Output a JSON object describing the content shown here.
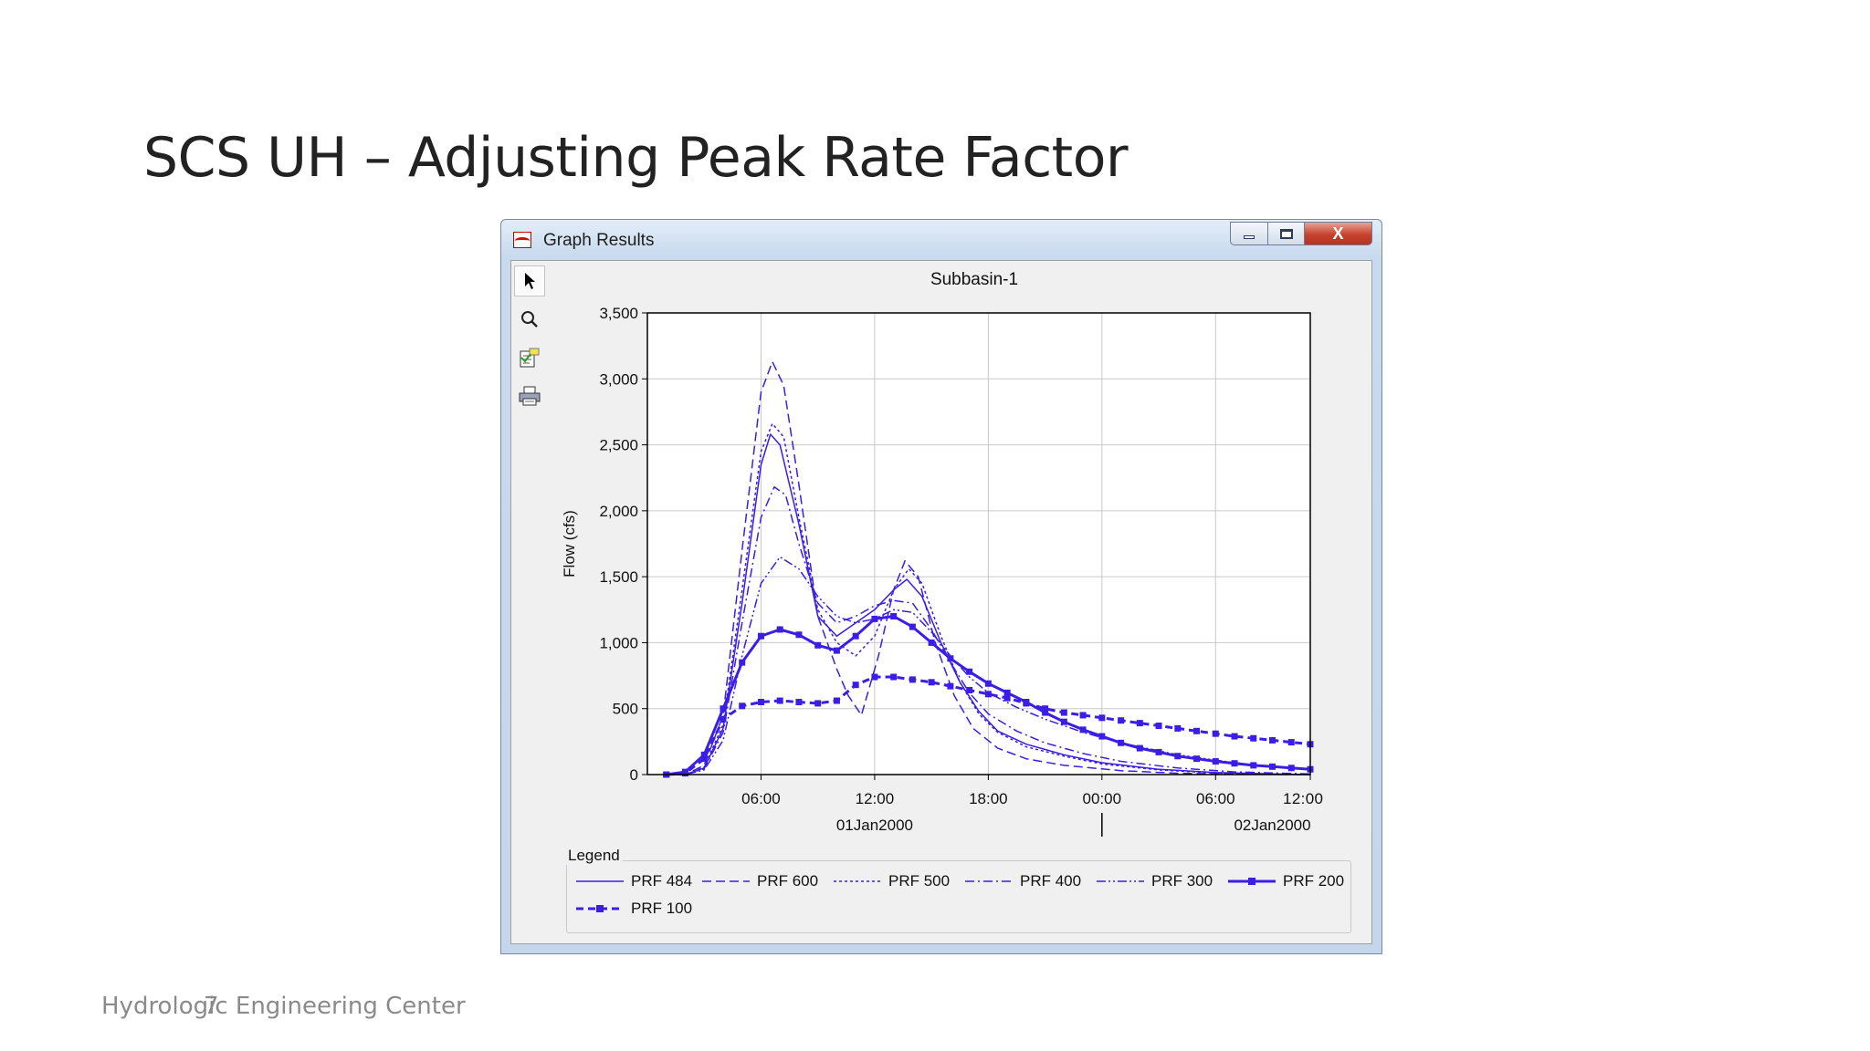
{
  "slide": {
    "title": "SCS UH – Adjusting Peak Rate Factor",
    "footer": "Hydrologic Engineering Center",
    "page_number": "7"
  },
  "window": {
    "title": "Graph Results",
    "close_glyph": "X",
    "toolbar": [
      {
        "icon": "pointer-icon",
        "name": "select-tool"
      },
      {
        "icon": "magnifier-icon",
        "name": "zoom-tool"
      },
      {
        "icon": "properties-icon",
        "name": "properties-tool"
      },
      {
        "icon": "printer-icon",
        "name": "print-tool"
      }
    ]
  },
  "colors": {
    "series": "#3a1ee6",
    "grid": "#c8c8c8",
    "plot_bg": "#ffffff"
  },
  "legend": {
    "title": "Legend"
  },
  "chart_data": {
    "type": "line",
    "title": "Subbasin-1",
    "xlabel": "",
    "ylabel": "Flow (cfs)",
    "ylim": [
      0,
      3500
    ],
    "xlim": [
      0,
      35
    ],
    "yticks": [
      0,
      500,
      1000,
      1500,
      2000,
      2500,
      3000,
      3500
    ],
    "ytick_labels": [
      "0",
      "500",
      "1,000",
      "1,500",
      "2,000",
      "2,500",
      "3,000",
      "3,500"
    ],
    "xticks": [
      6,
      12,
      18,
      24,
      30,
      36
    ],
    "xtick_labels": [
      "06:00",
      "12:00",
      "18:00",
      "00:00",
      "06:00",
      "12:00"
    ],
    "date_labels": [
      {
        "at": 12,
        "label": "01Jan2000"
      },
      {
        "at": 33,
        "label": "02Jan2000"
      }
    ],
    "date_divider_at": 24,
    "x_units": "hours after 00:00 01Jan2000",
    "series": [
      {
        "name": "PRF 484",
        "style": "solid",
        "points": [
          [
            1,
            0
          ],
          [
            2,
            0
          ],
          [
            3,
            50
          ],
          [
            4,
            350
          ],
          [
            5,
            1300
          ],
          [
            6,
            2350
          ],
          [
            6.5,
            2580
          ],
          [
            7,
            2500
          ],
          [
            8,
            1900
          ],
          [
            9,
            1200
          ],
          [
            10,
            1050
          ],
          [
            11,
            1150
          ],
          [
            12,
            1250
          ],
          [
            13,
            1400
          ],
          [
            13.7,
            1480
          ],
          [
            14.5,
            1350
          ],
          [
            15.5,
            1000
          ],
          [
            16.5,
            700
          ],
          [
            17.5,
            480
          ],
          [
            18.5,
            330
          ],
          [
            20,
            230
          ],
          [
            22,
            150
          ],
          [
            24,
            90
          ],
          [
            27,
            40
          ],
          [
            30,
            15
          ],
          [
            33,
            5
          ],
          [
            35,
            0
          ]
        ]
      },
      {
        "name": "PRF 600",
        "style": "dash",
        "points": [
          [
            1,
            0
          ],
          [
            2,
            0
          ],
          [
            3,
            70
          ],
          [
            4,
            450
          ],
          [
            5,
            1700
          ],
          [
            6,
            2900
          ],
          [
            6.6,
            3130
          ],
          [
            7.2,
            2950
          ],
          [
            8,
            2200
          ],
          [
            9,
            1200
          ],
          [
            10,
            800
          ],
          [
            10.6,
            600
          ],
          [
            11.3,
            450
          ],
          [
            12.2,
            900
          ],
          [
            13,
            1400
          ],
          [
            13.6,
            1620
          ],
          [
            14.3,
            1500
          ],
          [
            15.2,
            1000
          ],
          [
            16.2,
            600
          ],
          [
            17.2,
            350
          ],
          [
            18.5,
            200
          ],
          [
            20,
            120
          ],
          [
            22,
            70
          ],
          [
            25,
            30
          ],
          [
            28,
            10
          ],
          [
            32,
            2
          ],
          [
            35,
            0
          ]
        ]
      },
      {
        "name": "PRF 500",
        "style": "dot",
        "points": [
          [
            1,
            0
          ],
          [
            2,
            0
          ],
          [
            3,
            55
          ],
          [
            4,
            380
          ],
          [
            5,
            1400
          ],
          [
            6,
            2450
          ],
          [
            6.6,
            2660
          ],
          [
            7.2,
            2560
          ],
          [
            8,
            1950
          ],
          [
            9,
            1250
          ],
          [
            10,
            1000
          ],
          [
            11,
            900
          ],
          [
            12,
            1050
          ],
          [
            13,
            1400
          ],
          [
            13.8,
            1560
          ],
          [
            14.5,
            1450
          ],
          [
            15.5,
            1050
          ],
          [
            16.5,
            700
          ],
          [
            17.5,
            460
          ],
          [
            18.5,
            320
          ],
          [
            20,
            210
          ],
          [
            22,
            140
          ],
          [
            24,
            80
          ],
          [
            27,
            35
          ],
          [
            30,
            12
          ],
          [
            33,
            3
          ],
          [
            35,
            0
          ]
        ]
      },
      {
        "name": "PRF 400",
        "style": "dashdot",
        "points": [
          [
            1,
            0
          ],
          [
            2,
            0
          ],
          [
            3,
            45
          ],
          [
            4,
            320
          ],
          [
            5,
            1150
          ],
          [
            6,
            1950
          ],
          [
            6.7,
            2180
          ],
          [
            7.3,
            2120
          ],
          [
            8,
            1750
          ],
          [
            9,
            1300
          ],
          [
            10,
            1150
          ],
          [
            11,
            1200
          ],
          [
            12,
            1280
          ],
          [
            13,
            1320
          ],
          [
            14,
            1300
          ],
          [
            15,
            1100
          ],
          [
            16,
            850
          ],
          [
            17,
            620
          ],
          [
            18,
            460
          ],
          [
            19.5,
            330
          ],
          [
            21,
            240
          ],
          [
            23,
            160
          ],
          [
            25,
            100
          ],
          [
            28,
            50
          ],
          [
            31,
            20
          ],
          [
            35,
            5
          ]
        ]
      },
      {
        "name": "PRF 300",
        "style": "dashdotdot",
        "points": [
          [
            1,
            0
          ],
          [
            2,
            0
          ],
          [
            3,
            35
          ],
          [
            4,
            260
          ],
          [
            5,
            900
          ],
          [
            6,
            1450
          ],
          [
            7,
            1650
          ],
          [
            8,
            1560
          ],
          [
            9,
            1350
          ],
          [
            10,
            1200
          ],
          [
            11,
            1150
          ],
          [
            12,
            1180
          ],
          [
            13,
            1250
          ],
          [
            14,
            1230
          ],
          [
            15,
            1080
          ],
          [
            16,
            900
          ],
          [
            17,
            740
          ],
          [
            18,
            620
          ],
          [
            19.5,
            510
          ],
          [
            21,
            420
          ],
          [
            23,
            320
          ],
          [
            25,
            240
          ],
          [
            28,
            150
          ],
          [
            31,
            90
          ],
          [
            33,
            60
          ],
          [
            35,
            40
          ]
        ]
      },
      {
        "name": "PRF 200",
        "style": "solid-square",
        "points": [
          [
            1,
            0
          ],
          [
            2,
            20
          ],
          [
            3,
            150
          ],
          [
            4,
            500
          ],
          [
            5,
            850
          ],
          [
            6,
            1050
          ],
          [
            7,
            1100
          ],
          [
            8,
            1060
          ],
          [
            9,
            980
          ],
          [
            10,
            940
          ],
          [
            11,
            1050
          ],
          [
            12,
            1180
          ],
          [
            13,
            1200
          ],
          [
            14,
            1120
          ],
          [
            15,
            1000
          ],
          [
            16,
            880
          ],
          [
            17,
            780
          ],
          [
            18,
            690
          ],
          [
            19,
            620
          ],
          [
            20,
            550
          ],
          [
            21,
            470
          ],
          [
            22,
            400
          ],
          [
            23,
            340
          ],
          [
            24,
            290
          ],
          [
            25,
            240
          ],
          [
            26,
            200
          ],
          [
            27,
            170
          ],
          [
            28,
            140
          ],
          [
            29,
            120
          ],
          [
            30,
            100
          ],
          [
            31,
            85
          ],
          [
            32,
            70
          ],
          [
            33,
            60
          ],
          [
            34,
            50
          ],
          [
            35,
            40
          ]
        ]
      },
      {
        "name": "PRF 100",
        "style": "dash-square",
        "points": [
          [
            1,
            0
          ],
          [
            2,
            10
          ],
          [
            3,
            120
          ],
          [
            4,
            420
          ],
          [
            5,
            520
          ],
          [
            6,
            550
          ],
          [
            7,
            560
          ],
          [
            8,
            550
          ],
          [
            9,
            540
          ],
          [
            10,
            560
          ],
          [
            11,
            680
          ],
          [
            12,
            740
          ],
          [
            13,
            740
          ],
          [
            14,
            720
          ],
          [
            15,
            700
          ],
          [
            16,
            670
          ],
          [
            17,
            640
          ],
          [
            18,
            610
          ],
          [
            19,
            580
          ],
          [
            20,
            540
          ],
          [
            21,
            500
          ],
          [
            22,
            470
          ],
          [
            23,
            450
          ],
          [
            24,
            430
          ],
          [
            25,
            410
          ],
          [
            26,
            390
          ],
          [
            27,
            370
          ],
          [
            28,
            350
          ],
          [
            29,
            330
          ],
          [
            30,
            310
          ],
          [
            31,
            290
          ],
          [
            32,
            275
          ],
          [
            33,
            260
          ],
          [
            34,
            245
          ],
          [
            35,
            230
          ]
        ]
      }
    ]
  }
}
